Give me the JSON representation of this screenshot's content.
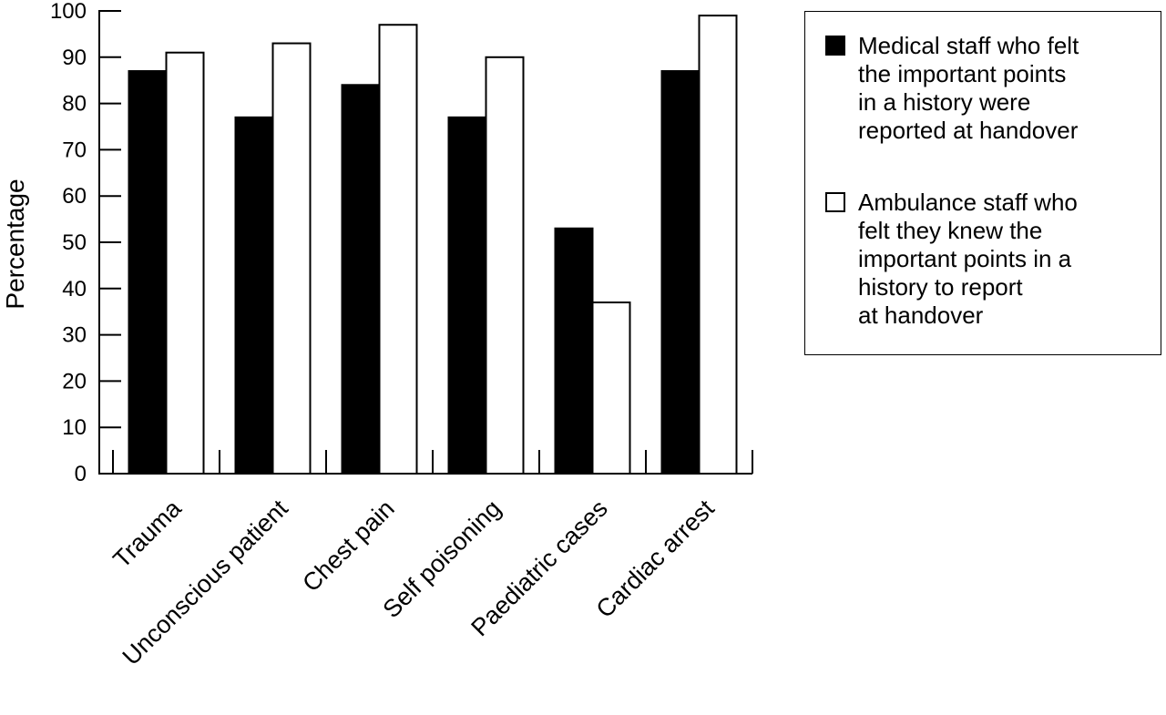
{
  "chart_data": {
    "type": "bar",
    "categories": [
      "Trauma",
      "Unconscious patient",
      "Chest pain",
      "Self poisoning",
      "Paediatric cases",
      "Cardiac arrest"
    ],
    "series": [
      {
        "name": "Medical staff who felt\nthe important points\nin a history were\nreported at handover",
        "color": "#000000",
        "values": [
          87,
          77,
          84,
          77,
          53,
          87
        ]
      },
      {
        "name": "Ambulance staff who\nfelt they knew the\nimportant points in a\nhistory to report\nat handover",
        "color": "#ffffff",
        "values": [
          91,
          93,
          97,
          90,
          37,
          99
        ]
      }
    ],
    "title": "",
    "xlabel": "",
    "ylabel": "Percentage",
    "ylim": [
      0,
      100
    ],
    "yticks": [
      "0",
      "10",
      "20",
      "30",
      "40",
      "50",
      "60",
      "70",
      "80",
      "90",
      "100"
    ],
    "grid": false,
    "legend_position": "right"
  }
}
